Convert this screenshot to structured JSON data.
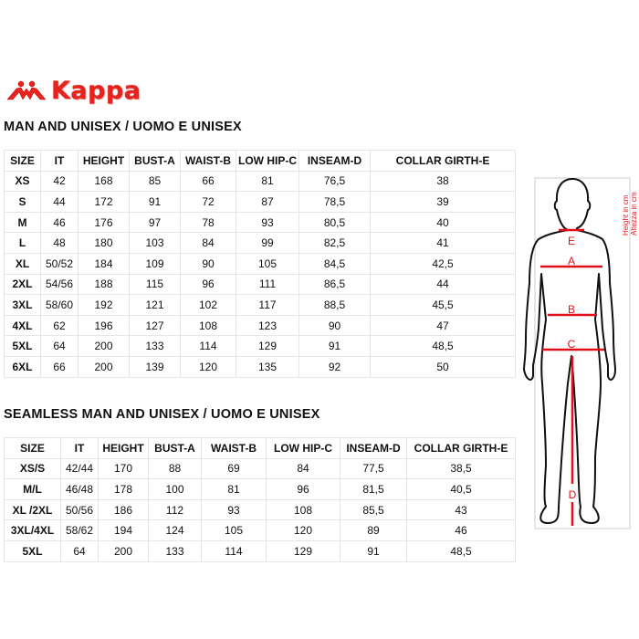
{
  "brand": {
    "name": "Kappa",
    "color": "#e8231d"
  },
  "tables": [
    {
      "title": "MAN AND UNISEX / UOMO E UNISEX",
      "headers": [
        "SIZE",
        "IT",
        "HEIGHT",
        "BUST-A",
        "WAIST-B",
        "LOW HIP-C",
        "INSEAM-D",
        "COLLAR GIRTH-E"
      ],
      "rows": [
        [
          "XS",
          "42",
          "168",
          "85",
          "66",
          "81",
          "76,5",
          "38"
        ],
        [
          "S",
          "44",
          "172",
          "91",
          "72",
          "87",
          "78,5",
          "39"
        ],
        [
          "M",
          "46",
          "176",
          "97",
          "78",
          "93",
          "80,5",
          "40"
        ],
        [
          "L",
          "48",
          "180",
          "103",
          "84",
          "99",
          "82,5",
          "41"
        ],
        [
          "XL",
          "50/52",
          "184",
          "109",
          "90",
          "105",
          "84,5",
          "42,5"
        ],
        [
          "2XL",
          "54/56",
          "188",
          "115",
          "96",
          "111",
          "86,5",
          "44"
        ],
        [
          "3XL",
          "58/60",
          "192",
          "121",
          "102",
          "117",
          "88,5",
          "45,5"
        ],
        [
          "4XL",
          "62",
          "196",
          "127",
          "108",
          "123",
          "90",
          "47"
        ],
        [
          "5XL",
          "64",
          "200",
          "133",
          "114",
          "129",
          "91",
          "48,5"
        ],
        [
          "6XL",
          "66",
          "200",
          "139",
          "120",
          "135",
          "92",
          "50"
        ]
      ]
    },
    {
      "title": "SEAMLESS MAN AND UNISEX / UOMO E UNISEX",
      "headers": [
        "SIZE",
        "IT",
        "HEIGHT",
        "BUST-A",
        "WAIST-B",
        "LOW HIP-C",
        "INSEAM-D",
        "COLLAR GIRTH-E"
      ],
      "rows": [
        [
          "XS/S",
          "42/44",
          "170",
          "88",
          "69",
          "84",
          "77,5",
          "38,5"
        ],
        [
          "M/L",
          "46/48",
          "178",
          "100",
          "81",
          "96",
          "81,5",
          "40,5"
        ],
        [
          "XL /2XL",
          "50/56",
          "186",
          "112",
          "93",
          "108",
          "85,5",
          "43"
        ],
        [
          "3XL/4XL",
          "58/62",
          "194",
          "124",
          "105",
          "120",
          "89",
          "46"
        ],
        [
          "5XL",
          "64",
          "200",
          "133",
          "114",
          "129",
          "91",
          "48,5"
        ]
      ]
    }
  ],
  "figure": {
    "labels": {
      "collar": "E",
      "bust": "A",
      "waist": "B",
      "hip": "C",
      "inseam": "D"
    },
    "height_label_en": "Height in cm",
    "height_label_it": "Altezza in cm",
    "measure_color": "#e0101a"
  }
}
